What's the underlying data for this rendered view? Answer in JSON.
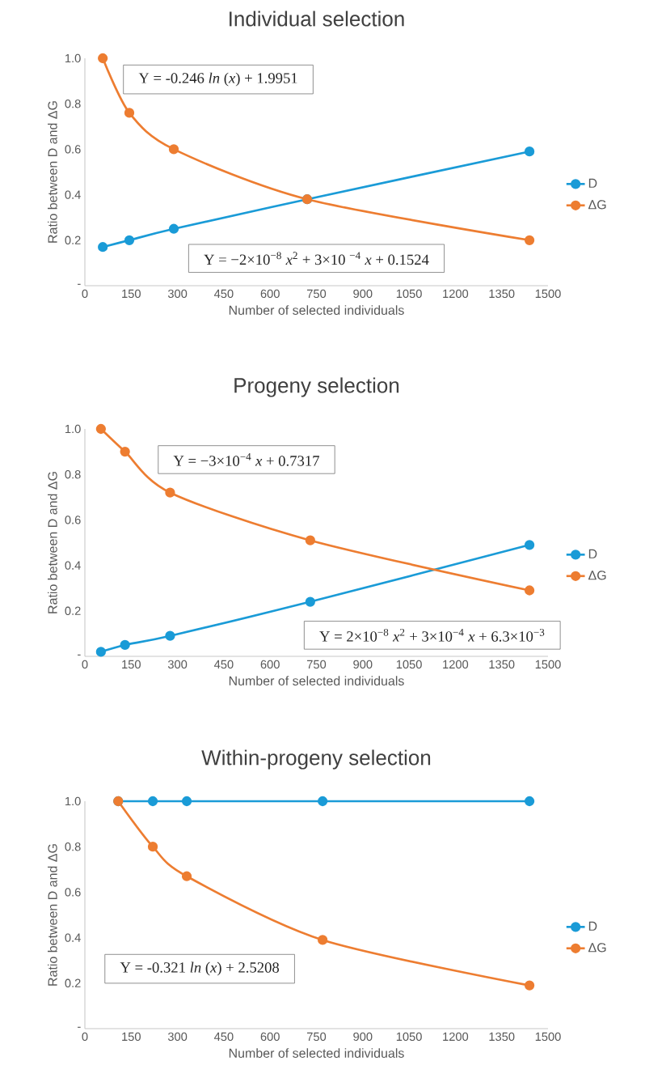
{
  "chart_data": [
    {
      "type": "line",
      "title": "Individual selection",
      "xlabel": "Number of selected individuals",
      "ylabel": "Ratio between D and ΔG",
      "x": [
        58,
        144,
        288,
        720,
        1440
      ],
      "series": [
        {
          "name": "D",
          "color": "#1a9bd7",
          "values": [
            0.17,
            0.2,
            0.25,
            0.38,
            0.59
          ]
        },
        {
          "name": "ΔG",
          "color": "#ed7d31",
          "values": [
            1.0,
            0.76,
            0.6,
            0.38,
            0.2
          ]
        }
      ],
      "xlim": [
        0,
        1500
      ],
      "xticks": [
        0,
        150,
        300,
        450,
        600,
        750,
        900,
        1050,
        1200,
        1350,
        1500
      ],
      "ylim": [
        0,
        1
      ],
      "yticks": [
        {
          "value": 0,
          "label": "-"
        },
        {
          "value": 0.2,
          "label": "0.2"
        },
        {
          "value": 0.4,
          "label": "0.4"
        },
        {
          "value": 0.6,
          "label": "0.6"
        },
        {
          "value": 0.8,
          "label": "0.8"
        },
        {
          "value": 1,
          "label": "1.0"
        }
      ],
      "annotations": [
        "Y = -0.246 *ln* (*x*) + 1.9951",
        "Y = −2×10$^{−8}$ *x*$^{2}$ + 3×10 $^{−4}$ *x* + 0.1524"
      ],
      "legend": "right",
      "marker": "circle"
    },
    {
      "type": "line",
      "title": "Progeny selection",
      "xlabel": "Number of selected individuals",
      "ylabel": "Ratio between D and ΔG",
      "x": [
        52,
        130,
        276,
        730,
        1440
      ],
      "series": [
        {
          "name": "D",
          "color": "#1a9bd7",
          "values": [
            0.02,
            0.05,
            0.09,
            0.24,
            0.49
          ]
        },
        {
          "name": "ΔG",
          "color": "#ed7d31",
          "values": [
            1.0,
            0.9,
            0.72,
            0.51,
            0.29
          ]
        }
      ],
      "xlim": [
        0,
        1500
      ],
      "xticks": [
        0,
        150,
        300,
        450,
        600,
        750,
        900,
        1050,
        1200,
        1350,
        1500
      ],
      "ylim": [
        0,
        1
      ],
      "yticks": [
        {
          "value": 0,
          "label": "-"
        },
        {
          "value": 0.2,
          "label": "0.2"
        },
        {
          "value": 0.4,
          "label": "0.4"
        },
        {
          "value": 0.6,
          "label": "0.6"
        },
        {
          "value": 0.8,
          "label": "0.8"
        },
        {
          "value": 1,
          "label": "1.0"
        }
      ],
      "annotations": [
        "Y = −3×10$^{−4}$ *x* + 0.7317",
        "Y = 2×10$^{−8}$ *x*$^{2}$ + 3×10$^{−4}$ *x* + 6.3×10$^{−3}$"
      ],
      "legend": "right",
      "marker": "circle"
    },
    {
      "type": "line",
      "title": "Within-progeny selection",
      "xlabel": "Number of selected individuals",
      "ylabel": "Ratio between D and ΔG",
      "x": [
        108,
        220,
        330,
        770,
        1440
      ],
      "series": [
        {
          "name": "D",
          "color": "#1a9bd7",
          "values": [
            1.0,
            1.0,
            1.0,
            1.0,
            1.0
          ]
        },
        {
          "name": "ΔG",
          "color": "#ed7d31",
          "values": [
            1.0,
            0.8,
            0.67,
            0.39,
            0.19
          ]
        }
      ],
      "xlim": [
        0,
        1500
      ],
      "xticks": [
        0,
        150,
        300,
        450,
        600,
        750,
        900,
        1050,
        1200,
        1350,
        1500
      ],
      "ylim": [
        0,
        1
      ],
      "yticks": [
        {
          "value": 0,
          "label": "-"
        },
        {
          "value": 0.2,
          "label": "0.2"
        },
        {
          "value": 0.4,
          "label": "0.4"
        },
        {
          "value": 0.6,
          "label": "0.6"
        },
        {
          "value": 0.8,
          "label": "0.8"
        },
        {
          "value": 1,
          "label": "1.0"
        }
      ],
      "annotations": [
        "Y = -0.321 *ln* (*x*) + 2.5208"
      ],
      "legend": "right",
      "marker": "circle"
    }
  ]
}
